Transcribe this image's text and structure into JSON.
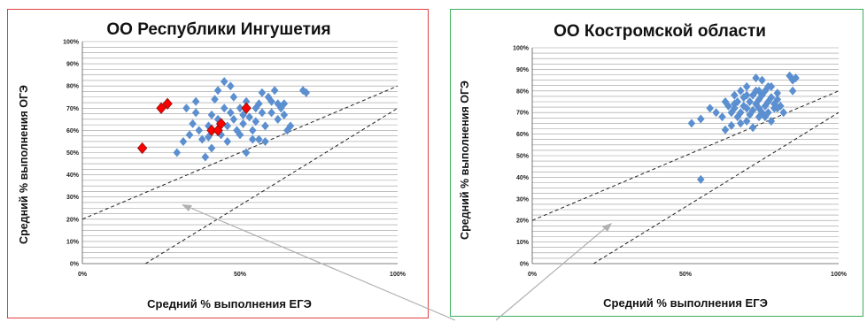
{
  "chart_data": [
    {
      "type": "scatter",
      "title": "ОО Республики Ингушетия",
      "xlabel": "Средний % выполнения ЕГЭ",
      "ylabel": "Средний % выполнения ОГЭ",
      "xlim": [
        0,
        100
      ],
      "ylim": [
        0,
        100
      ],
      "x_ticks": [
        "0%",
        "50%",
        "100%"
      ],
      "y_ticks": [
        "0%",
        "10%",
        "20%",
        "30%",
        "40%",
        "50%",
        "60%",
        "70%",
        "80%",
        "90%",
        "100%"
      ],
      "grid": true,
      "reference_lines": [
        {
          "x": [
            0,
            100
          ],
          "y": [
            20,
            80
          ]
        },
        {
          "x": [
            20,
            100
          ],
          "y": [
            0,
            70
          ]
        }
      ],
      "series": [
        {
          "color": "#5b8fd0",
          "marker": "diamond",
          "points": [
            [
              30,
              50
            ],
            [
              32,
              55
            ],
            [
              34,
              58
            ],
            [
              35,
              63
            ],
            [
              33,
              70
            ],
            [
              36,
              68
            ],
            [
              37,
              60
            ],
            [
              38,
              56
            ],
            [
              39,
              48
            ],
            [
              40,
              57
            ],
            [
              40,
              62
            ],
            [
              41,
              67
            ],
            [
              42,
              74
            ],
            [
              43,
              65
            ],
            [
              44,
              58
            ],
            [
              45,
              82
            ],
            [
              45,
              70
            ],
            [
              46,
              62
            ],
            [
              46,
              55
            ],
            [
              47,
              68
            ],
            [
              48,
              65
            ],
            [
              48,
              75
            ],
            [
              49,
              60
            ],
            [
              50,
              58
            ],
            [
              50,
              70
            ],
            [
              51,
              63
            ],
            [
              51,
              67
            ],
            [
              52,
              50
            ],
            [
              52,
              73
            ],
            [
              53,
              66
            ],
            [
              54,
              60
            ],
            [
              55,
              70
            ],
            [
              55,
              64
            ],
            [
              56,
              56
            ],
            [
              56,
              72
            ],
            [
              57,
              68
            ],
            [
              58,
              62
            ],
            [
              58,
              55
            ],
            [
              59,
              75
            ],
            [
              60,
              68
            ],
            [
              61,
              78
            ],
            [
              62,
              65
            ],
            [
              62,
              72
            ],
            [
              63,
              70
            ],
            [
              64,
              67
            ],
            [
              65,
              60
            ],
            [
              66,
              62
            ],
            [
              43,
              78
            ],
            [
              47,
              80
            ],
            [
              41,
              52
            ],
            [
              54,
              56
            ],
            [
              57,
              77
            ],
            [
              60,
              73
            ],
            [
              70,
              78
            ],
            [
              71,
              77
            ],
            [
              64,
              72
            ],
            [
              36,
              73
            ]
          ]
        },
        {
          "color": "#ff0000",
          "marker": "diamond",
          "points": [
            [
              19,
              52
            ],
            [
              25,
              70
            ],
            [
              27,
              72
            ],
            [
              41,
              60
            ],
            [
              43,
              60
            ],
            [
              44,
              63
            ],
            [
              52,
              70
            ]
          ]
        }
      ]
    },
    {
      "type": "scatter",
      "title": "ОО Костромской области",
      "xlabel": "Средний % выполнения ЕГЭ",
      "ylabel": "Средний % выполнения ОГЭ",
      "xlim": [
        0,
        100
      ],
      "ylim": [
        0,
        100
      ],
      "x_ticks": [
        "0%",
        "50%",
        "100%"
      ],
      "y_ticks": [
        "0%",
        "10%",
        "20%",
        "30%",
        "40%",
        "50%",
        "60%",
        "70%",
        "80%",
        "90%",
        "100%"
      ],
      "grid": true,
      "reference_lines": [
        {
          "x": [
            0,
            100
          ],
          "y": [
            20,
            80
          ]
        },
        {
          "x": [
            20,
            100
          ],
          "y": [
            0,
            70
          ]
        }
      ],
      "series": [
        {
          "color": "#5b8fd0",
          "marker": "diamond",
          "points": [
            [
              52,
              65
            ],
            [
              55,
              67
            ],
            [
              55,
              39
            ],
            [
              58,
              72
            ],
            [
              60,
              70
            ],
            [
              62,
              68
            ],
            [
              63,
              62
            ],
            [
              63,
              75
            ],
            [
              64,
              73
            ],
            [
              65,
              70
            ],
            [
              65,
              64
            ],
            [
              66,
              78
            ],
            [
              66,
              72
            ],
            [
              67,
              68
            ],
            [
              67,
              75
            ],
            [
              68,
              80
            ],
            [
              68,
              70
            ],
            [
              69,
              73
            ],
            [
              69,
              77
            ],
            [
              70,
              66
            ],
            [
              70,
              72
            ],
            [
              70,
              82
            ],
            [
              71,
              75
            ],
            [
              71,
              69
            ],
            [
              72,
              78
            ],
            [
              72,
              71
            ],
            [
              73,
              74
            ],
            [
              73,
              80
            ],
            [
              74,
              68
            ],
            [
              74,
              76
            ],
            [
              74,
              72
            ],
            [
              75,
              70
            ],
            [
              75,
              85
            ],
            [
              75,
              78
            ],
            [
              76,
              73
            ],
            [
              76,
              80
            ],
            [
              77,
              75
            ],
            [
              77,
              70
            ],
            [
              78,
              77
            ],
            [
              78,
              82
            ],
            [
              79,
              74
            ],
            [
              79,
              72
            ],
            [
              80,
              79
            ],
            [
              80,
              76
            ],
            [
              81,
              73
            ],
            [
              82,
              70
            ],
            [
              84,
              87
            ],
            [
              85,
              80
            ],
            [
              86,
              86
            ],
            [
              85,
              85
            ],
            [
              72,
              63
            ],
            [
              68,
              65
            ],
            [
              76,
              68
            ],
            [
              80,
              72
            ],
            [
              73,
              86
            ],
            [
              78,
              66
            ],
            [
              66,
              74
            ],
            [
              70,
              78
            ],
            [
              74,
              80
            ],
            [
              77,
              82
            ]
          ]
        }
      ]
    }
  ]
}
